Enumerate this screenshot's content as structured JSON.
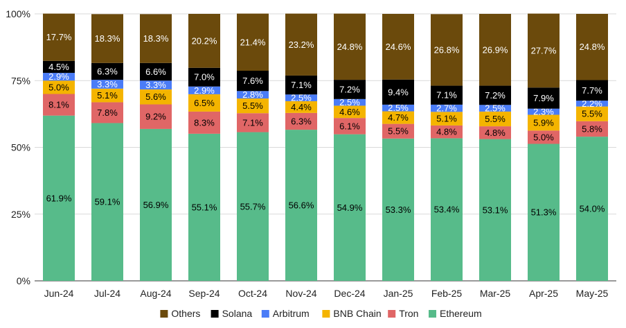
{
  "chart_data": {
    "type": "bar",
    "stacked": true,
    "percent_stacked": true,
    "categories": [
      "Jun-24",
      "Jul-24",
      "Aug-24",
      "Sep-24",
      "Oct-24",
      "Nov-24",
      "Dec-24",
      "Jan-25",
      "Feb-25",
      "Mar-25",
      "Apr-25",
      "May-25"
    ],
    "y_ticks": [
      "0%",
      "25%",
      "50%",
      "75%",
      "100%"
    ],
    "ylim": [
      0,
      100
    ],
    "grid": true,
    "legend_position": "bottom",
    "series": [
      {
        "name": "Ethereum",
        "color": "#57bb8a",
        "label_color": "#000000",
        "values": [
          61.9,
          59.1,
          56.9,
          55.1,
          55.7,
          56.6,
          54.9,
          53.3,
          53.4,
          53.1,
          51.3,
          54.0
        ],
        "labels": [
          "61.9%",
          "59.1%",
          "56.9%",
          "55.1%",
          "55.7%",
          "56.6%",
          "54.9%",
          "53.3%",
          "53.4%",
          "53.1%",
          "51.3%",
          "54.0%"
        ]
      },
      {
        "name": "Tron",
        "color": "#e06666",
        "label_color": "#000000",
        "values": [
          8.1,
          7.8,
          9.2,
          8.3,
          7.1,
          6.3,
          6.1,
          5.5,
          4.8,
          4.8,
          5.0,
          5.8
        ],
        "labels": [
          "8.1%",
          "7.8%",
          "9.2%",
          "8.3%",
          "7.1%",
          "6.3%",
          "6.1%",
          "5.5%",
          "4.8%",
          "4.8%",
          "5.0%",
          "5.8%"
        ]
      },
      {
        "name": "BNB Chain",
        "color": "#f4b400",
        "label_color": "#000000",
        "values": [
          5.0,
          5.1,
          5.6,
          6.5,
          5.5,
          4.4,
          4.6,
          4.7,
          5.1,
          5.5,
          5.9,
          5.5
        ],
        "labels": [
          "5.0%",
          "5.1%",
          "5.6%",
          "6.5%",
          "5.5%",
          "4.4%",
          "4.6%",
          "4.7%",
          "5.1%",
          "5.5%",
          "5.9%",
          "5.5%"
        ]
      },
      {
        "name": "Arbitrum",
        "color": "#4a7cf7",
        "label_color": "#ffffff",
        "values": [
          2.9,
          3.3,
          3.3,
          2.9,
          2.8,
          2.5,
          2.5,
          2.5,
          2.7,
          2.5,
          2.3,
          2.2
        ],
        "labels": [
          "2.9%",
          "3.3%",
          "3.3%",
          "2.9%",
          "2.8%",
          "2.5%",
          "2.5%",
          "2.5%",
          "2.7%",
          "2.5%",
          "2.3%",
          "2.2%"
        ]
      },
      {
        "name": "Solana",
        "color": "#000000",
        "label_color": "#ffffff",
        "values": [
          4.5,
          6.3,
          6.6,
          7.0,
          7.6,
          7.1,
          7.2,
          9.4,
          7.1,
          7.2,
          7.9,
          7.7
        ],
        "labels": [
          "4.5%",
          "6.3%",
          "6.6%",
          "7.0%",
          "7.6%",
          "7.1%",
          "7.2%",
          "9.4%",
          "7.1%",
          "7.2%",
          "7.9%",
          "7.7%"
        ]
      },
      {
        "name": "Others",
        "color": "#6b4a0c",
        "label_color": "#ffffff",
        "values": [
          17.7,
          18.3,
          18.3,
          20.2,
          21.4,
          23.2,
          24.8,
          24.6,
          26.8,
          26.9,
          27.7,
          24.8
        ],
        "labels": [
          "17.7%",
          "18.3%",
          "18.3%",
          "20.2%",
          "21.4%",
          "23.2%",
          "24.8%",
          "24.6%",
          "26.8%",
          "26.9%",
          "27.7%",
          "24.8%"
        ]
      }
    ],
    "legend_order": [
      "Others",
      "Solana",
      "Arbitrum",
      "BNB Chain",
      "Tron",
      "Ethereum"
    ]
  }
}
